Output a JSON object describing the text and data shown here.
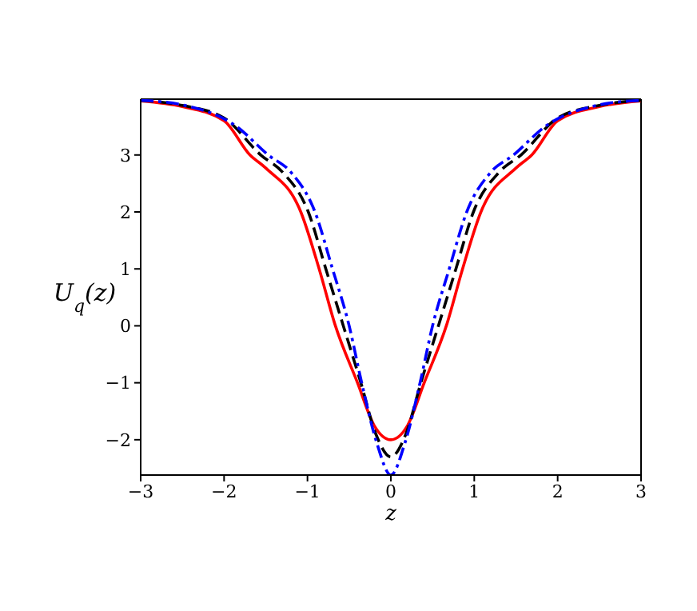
{
  "chart_data": {
    "type": "line",
    "xlabel": "z",
    "ylabel": "U$_{q}$(z)",
    "xlim": [
      -3,
      3
    ],
    "ylim": [
      -2.62,
      3.98
    ],
    "xticks": [
      -3,
      -2,
      -1,
      0,
      1,
      2,
      3
    ],
    "yticks": [
      -2,
      -1,
      0,
      1,
      2,
      3
    ],
    "grid": false,
    "legend": false,
    "marker": "none",
    "series": [
      {
        "color": "#ff0000",
        "line_style": "solid",
        "x": [
          -3,
          -2.5,
          -2,
          -1.69,
          -1.5,
          -1.08,
          -0.86,
          -0.665,
          -0.4,
          -0.2,
          0,
          0.2,
          0.4,
          0.665,
          0.86,
          1.08,
          1.5,
          1.69,
          2,
          2.5,
          3
        ],
        "values": [
          3.95,
          3.85,
          3.6,
          3,
          2.77,
          2,
          1,
          0,
          -1,
          -1.75,
          -2,
          -1.75,
          -1,
          0,
          1,
          2,
          2.77,
          3,
          3.6,
          3.85,
          3.95
        ]
      },
      {
        "color": "#000000",
        "line_style": "dashed",
        "x": [
          -3,
          -2.5,
          -2,
          -1.56,
          -1.3,
          -0.99,
          -0.78,
          -0.57,
          -0.36,
          -0.18,
          0,
          0.18,
          0.36,
          0.57,
          0.78,
          0.99,
          1.3,
          1.56,
          2,
          2.5,
          3
        ],
        "values": [
          3.96,
          3.87,
          3.65,
          3,
          2.7,
          2,
          1,
          0,
          -1,
          -1.9,
          -2.3,
          -1.9,
          -1,
          0,
          1,
          2,
          2.7,
          3,
          3.65,
          3.87,
          3.96
        ]
      },
      {
        "color": "#0000ff",
        "line_style": "dashdot",
        "x": [
          -3,
          -2.5,
          -1.85,
          -1.47,
          -1.2,
          -0.91,
          -0.7,
          -0.5,
          -0.35,
          -0.17,
          0,
          0.17,
          0.35,
          0.5,
          0.7,
          0.91,
          1.2,
          1.47,
          1.85,
          2.5,
          3
        ],
        "values": [
          3.96,
          3.88,
          3.5,
          3,
          2.7,
          2,
          1,
          0,
          -1,
          -2.05,
          -2.62,
          -2.05,
          -1,
          0,
          1,
          2,
          2.7,
          3,
          3.5,
          3.88,
          3.96
        ]
      }
    ]
  }
}
